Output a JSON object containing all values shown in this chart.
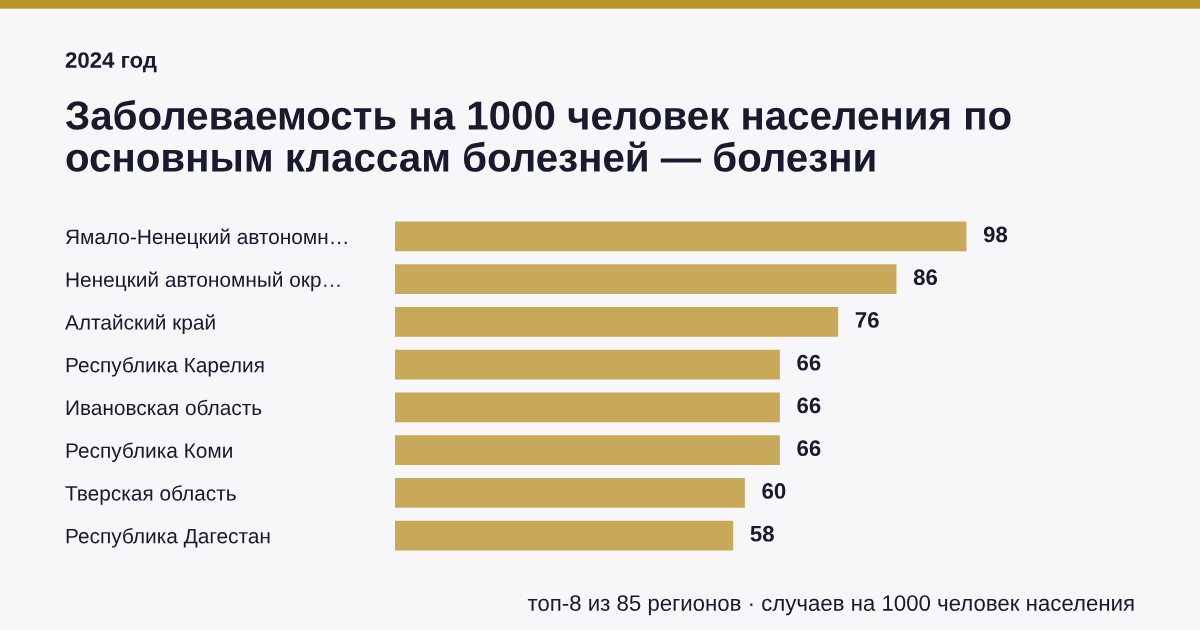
{
  "chart_data": {
    "type": "bar",
    "orientation": "horizontal",
    "title": "Заболеваемость на 1000 человек населения по основным классам болезней — болезни",
    "subtitle": "2024 год",
    "categories": [
      "Ямало-Ненецкий автономн…",
      "Ненецкий автономный окр…",
      "Алтайский край",
      "Республика Карелия",
      "Ивановская область",
      "Республика Коми",
      "Тверская область",
      "Республика Дагестан"
    ],
    "values": [
      98,
      86,
      76,
      66,
      66,
      66,
      60,
      58
    ],
    "color": "#c8a95a",
    "data_labels": true,
    "grid": false,
    "tick_labels": "y",
    "annotations": [
      "топ-8 из 85 регионов · случаев на 1000 человек населения"
    ]
  }
}
